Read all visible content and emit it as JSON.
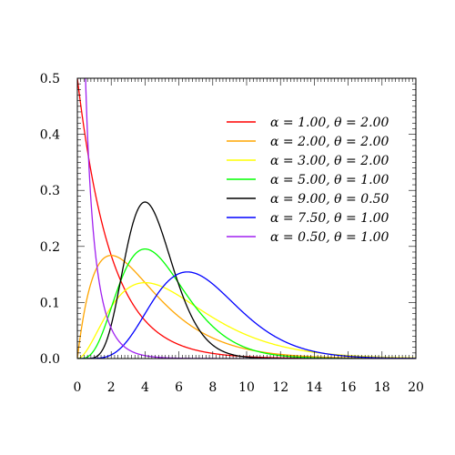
{
  "chart_data": {
    "type": "line",
    "title": "",
    "xlabel": "",
    "ylabel": "",
    "xlim": [
      0,
      20
    ],
    "ylim": [
      0,
      0.5
    ],
    "grid": false,
    "legend_position": "top-right",
    "x_ticks": [
      "0",
      "2",
      "4",
      "6",
      "8",
      "10",
      "12",
      "14",
      "16",
      "18",
      "20"
    ],
    "y_ticks": [
      "0.0",
      "0.1",
      "0.2",
      "0.3",
      "0.4",
      "0.5"
    ],
    "series": [
      {
        "name": "α = 1.00, θ = 2.00",
        "alpha": 1.0,
        "theta": 2.0,
        "color": "#ff0000"
      },
      {
        "name": "α = 2.00, θ = 2.00",
        "alpha": 2.0,
        "theta": 2.0,
        "color": "#ffa500"
      },
      {
        "name": "α = 3.00, θ = 2.00",
        "alpha": 3.0,
        "theta": 2.0,
        "color": "#ffff00"
      },
      {
        "name": "α = 5.00, θ = 1.00",
        "alpha": 5.0,
        "theta": 1.0,
        "color": "#00ff00"
      },
      {
        "name": "α = 9.00, θ = 0.50",
        "alpha": 9.0,
        "theta": 0.5,
        "color": "#000000"
      },
      {
        "name": "α = 7.50, θ = 1.00",
        "alpha": 7.5,
        "theta": 1.0,
        "color": "#0000ff"
      },
      {
        "name": "α = 0.50, θ = 1.00",
        "alpha": 0.5,
        "theta": 1.0,
        "color": "#a020f0"
      }
    ]
  }
}
